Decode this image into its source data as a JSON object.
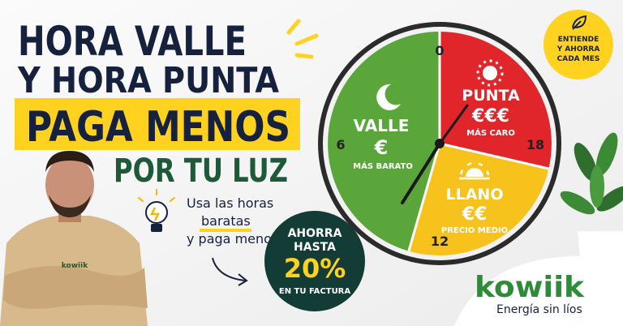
{
  "headline": {
    "line1": "HORA VALLE",
    "line2": "Y HORA PUNTA",
    "line3": "PAGA MENOS",
    "line4": "POR TU LUZ"
  },
  "tip": {
    "line1": "Usa las horas",
    "line2": "baratas",
    "line3": "y paga menos"
  },
  "savings_badge": {
    "line1": "AHORRA",
    "line2": "HASTA",
    "amount": "20%",
    "line3": "EN TU FACTURA"
  },
  "clock": {
    "hours": [
      "0",
      "6",
      "12",
      "18"
    ],
    "zones": [
      {
        "name": "VALLE",
        "price": "€",
        "note": "MÁS BARATO"
      },
      {
        "name": "PUNTA",
        "price": "€€€",
        "note": "MÁS CARO"
      },
      {
        "name": "LLANO",
        "price": "€€",
        "note": "PRECIO MEDIO"
      }
    ]
  },
  "corner_badge": {
    "lines": [
      "ENTIENDE",
      "Y AHORRA",
      "CADA MES"
    ]
  },
  "brand": {
    "shirt_logo": "kowiik",
    "logo": "kowiik",
    "tagline": "Energía sin líos"
  }
}
